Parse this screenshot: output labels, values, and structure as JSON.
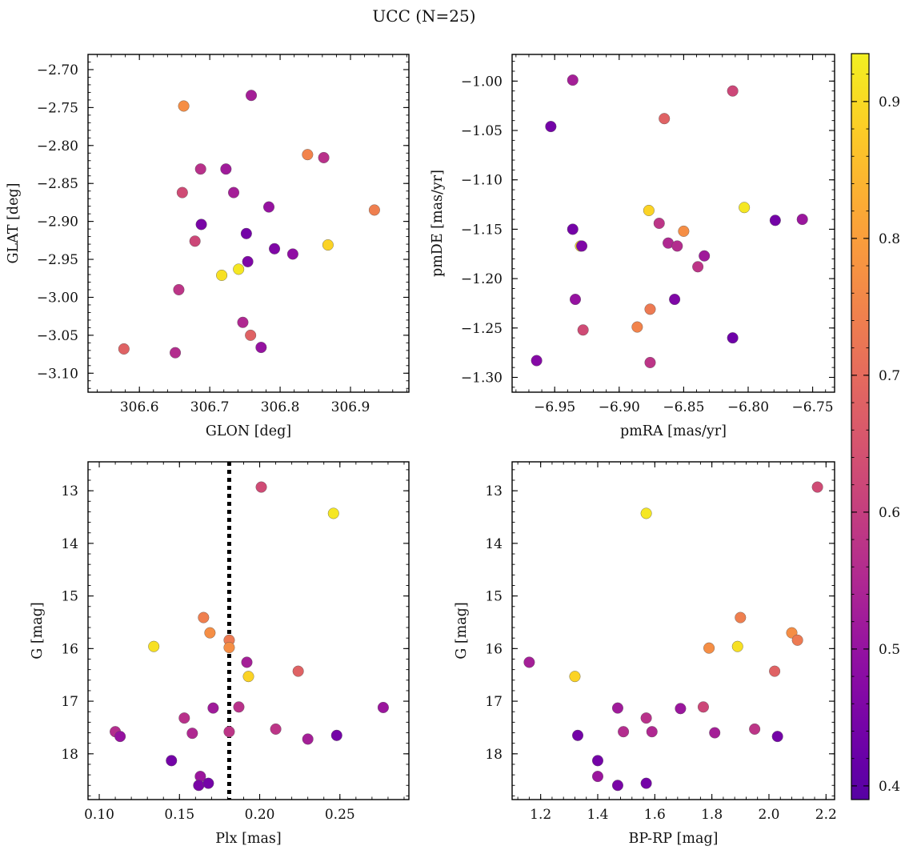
{
  "title": "UCC (N=25)",
  "colormap": {
    "name": "plasma",
    "range": [
      0.39,
      0.935
    ],
    "ticks": [
      0.4,
      0.5,
      0.6,
      0.7,
      0.8,
      0.9
    ],
    "tick_labels": [
      "0.4",
      "0.5",
      "0.6",
      "0.7",
      "0.8",
      "0.9"
    ]
  },
  "chart_data": [
    {
      "type": "scatter",
      "id": "lonlat",
      "xlabel": "GLON [deg]",
      "ylabel": "GLAT [deg]",
      "xlim": [
        306.527,
        306.983
      ],
      "ylim": [
        -3.125,
        -2.68
      ],
      "y_inverted": false,
      "xticks": [
        306.6,
        306.7,
        306.8,
        306.9
      ],
      "xtick_labels": [
        "306.6",
        "306.7",
        "306.8",
        "306.9"
      ],
      "yticks": [
        -2.7,
        -2.75,
        -2.8,
        -2.85,
        -2.9,
        -2.95,
        -3.0,
        -3.05,
        -3.1
      ],
      "ytick_labels": [
        "−2.70",
        "−2.75",
        "−2.80",
        "−2.85",
        "−2.90",
        "−2.95",
        "−3.00",
        "−3.05",
        "−3.10"
      ],
      "x": [
        306.759,
        306.663,
        306.839,
        306.862,
        306.687,
        306.723,
        306.661,
        306.734,
        306.784,
        306.934,
        306.688,
        306.752,
        306.679,
        306.868,
        306.792,
        306.818,
        306.754,
        306.741,
        306.717,
        306.656,
        306.747,
        306.758,
        306.773,
        306.578,
        306.651
      ],
      "y": [
        -2.734,
        -2.748,
        -2.812,
        -2.816,
        -2.831,
        -2.831,
        -2.862,
        -2.862,
        -2.881,
        -2.885,
        -2.904,
        -2.916,
        -2.926,
        -2.931,
        -2.936,
        -2.943,
        -2.953,
        -2.963,
        -2.971,
        -2.99,
        -3.033,
        -3.05,
        -3.066,
        -3.068,
        -3.073
      ],
      "c": [
        0.53,
        0.77,
        0.75,
        0.57,
        0.57,
        0.52,
        0.63,
        0.53,
        0.5,
        0.74,
        0.45,
        0.44,
        0.62,
        0.89,
        0.46,
        0.49,
        0.46,
        0.92,
        0.91,
        0.58,
        0.55,
        0.68,
        0.5,
        0.68,
        0.56
      ]
    },
    {
      "type": "scatter",
      "id": "pm",
      "xlabel": "pmRA [mas/yr]",
      "ylabel": "pmDE [mas/yr]",
      "xlim": [
        -6.983,
        -6.733
      ],
      "ylim": [
        -1.315,
        -0.973
      ],
      "y_inverted": false,
      "xticks": [
        -6.95,
        -6.9,
        -6.85,
        -6.8,
        -6.75
      ],
      "xtick_labels": [
        "−6.95",
        "−6.90",
        "−6.85",
        "−6.80",
        "−6.75"
      ],
      "yticks": [
        -1.0,
        -1.05,
        -1.1,
        -1.15,
        -1.2,
        -1.25,
        -1.3
      ],
      "ytick_labels": [
        "−1.00",
        "−1.05",
        "−1.10",
        "−1.15",
        "−1.20",
        "−1.25",
        "−1.30"
      ],
      "x": [
        -6.936,
        -6.812,
        -6.953,
        -6.865,
        -6.803,
        -6.877,
        -6.779,
        -6.758,
        -6.85,
        -6.936,
        -6.93,
        -6.929,
        -6.869,
        -6.862,
        -6.855,
        -6.834,
        -6.839,
        -6.934,
        -6.857,
        -6.876,
        -6.886,
        -6.928,
        -6.812,
        -6.876,
        -6.964
      ],
      "y": [
        -0.999,
        -1.01,
        -1.046,
        -1.038,
        -1.128,
        -1.131,
        -1.141,
        -1.14,
        -1.152,
        -1.15,
        -1.167,
        -1.167,
        -1.144,
        -1.164,
        -1.167,
        -1.177,
        -1.188,
        -1.221,
        -1.221,
        -1.231,
        -1.249,
        -1.252,
        -1.26,
        -1.285,
        -1.283
      ],
      "c": [
        0.53,
        0.62,
        0.44,
        0.68,
        0.92,
        0.89,
        0.44,
        0.51,
        0.77,
        0.44,
        0.9,
        0.46,
        0.58,
        0.55,
        0.56,
        0.52,
        0.58,
        0.5,
        0.46,
        0.73,
        0.75,
        0.63,
        0.43,
        0.58,
        0.47
      ]
    },
    {
      "type": "scatter",
      "id": "plx",
      "xlabel": "Plx [mas]",
      "ylabel": "G [mag]",
      "xlim": [
        0.093,
        0.293
      ],
      "ylim": [
        12.45,
        18.87
      ],
      "y_inverted": true,
      "xticks": [
        0.1,
        0.15,
        0.2,
        0.25
      ],
      "xtick_labels": [
        "0.10",
        "0.15",
        "0.20",
        "0.25"
      ],
      "yticks": [
        13,
        14,
        15,
        16,
        17,
        18
      ],
      "ytick_labels": [
        "13",
        "14",
        "15",
        "16",
        "17",
        "18"
      ],
      "vline": 0.181,
      "x": [
        0.201,
        0.246,
        0.165,
        0.169,
        0.181,
        0.181,
        0.134,
        0.192,
        0.224,
        0.193,
        0.171,
        0.187,
        0.277,
        0.153,
        0.21,
        0.11,
        0.158,
        0.181,
        0.113,
        0.248,
        0.23,
        0.145,
        0.163,
        0.162,
        0.168
      ],
      "y": [
        12.93,
        13.43,
        15.41,
        15.7,
        15.84,
        15.98,
        15.96,
        16.26,
        16.43,
        16.53,
        17.13,
        17.11,
        17.12,
        17.32,
        17.53,
        17.58,
        17.61,
        17.58,
        17.67,
        17.65,
        17.72,
        18.13,
        18.43,
        18.6,
        18.56
      ],
      "c": [
        0.63,
        0.92,
        0.74,
        0.77,
        0.73,
        0.77,
        0.91,
        0.53,
        0.68,
        0.89,
        0.52,
        0.57,
        0.51,
        0.57,
        0.58,
        0.56,
        0.55,
        0.58,
        0.5,
        0.44,
        0.53,
        0.44,
        0.51,
        0.45,
        0.44
      ]
    },
    {
      "type": "scatter",
      "id": "cmd",
      "xlabel": "BP-RP [mag]",
      "ylabel": "G [mag]",
      "xlim": [
        1.1,
        2.23
      ],
      "ylim": [
        12.45,
        18.87
      ],
      "y_inverted": true,
      "xticks": [
        1.2,
        1.4,
        1.6,
        1.8,
        2.0,
        2.2
      ],
      "xtick_labels": [
        "1.2",
        "1.4",
        "1.6",
        "1.8",
        "2.0",
        "2.2"
      ],
      "yticks": [
        13,
        14,
        15,
        16,
        17,
        18
      ],
      "ytick_labels": [
        "13",
        "14",
        "15",
        "16",
        "17",
        "18"
      ],
      "x": [
        2.17,
        1.57,
        1.9,
        2.08,
        2.1,
        1.79,
        1.89,
        1.16,
        2.02,
        1.32,
        1.47,
        1.69,
        1.77,
        1.57,
        1.95,
        1.49,
        1.59,
        1.81,
        1.33,
        2.03,
        1.4,
        1.4,
        1.47,
        1.57
      ],
      "y": [
        12.93,
        13.43,
        15.41,
        15.7,
        15.84,
        15.99,
        15.96,
        16.26,
        16.43,
        16.53,
        17.13,
        17.14,
        17.11,
        17.32,
        17.53,
        17.58,
        17.58,
        17.6,
        17.65,
        17.67,
        18.13,
        18.43,
        18.6,
        18.56
      ],
      "c": [
        0.63,
        0.92,
        0.74,
        0.77,
        0.73,
        0.77,
        0.91,
        0.53,
        0.68,
        0.89,
        0.52,
        0.51,
        0.62,
        0.57,
        0.58,
        0.56,
        0.55,
        0.53,
        0.44,
        0.44,
        0.44,
        0.51,
        0.45,
        0.44
      ]
    }
  ]
}
